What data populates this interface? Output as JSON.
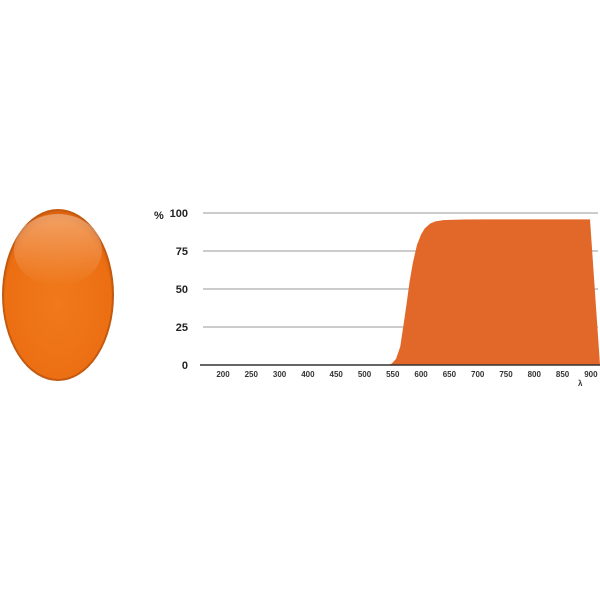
{
  "filter_swatch": {
    "color": "#ef7417",
    "shape": "ellipse"
  },
  "chart_data": {
    "type": "area",
    "title": "",
    "xlabel": "λ",
    "ylabel": "%",
    "xlim": [
      200,
      900
    ],
    "ylim": [
      0,
      100
    ],
    "grid": true,
    "x_ticks": [
      "200",
      "250",
      "300",
      "400",
      "450",
      "500",
      "550",
      "600",
      "650",
      "700",
      "750",
      "800",
      "850",
      "900"
    ],
    "y_ticks": [
      "0",
      "25",
      "50",
      "75",
      "100"
    ],
    "fill_color": "#e2682a",
    "series": [
      {
        "x": [
          200,
          515,
          522,
          530,
          538,
          545,
          550,
          556,
          562,
          570,
          578,
          585,
          595,
          605,
          620,
          640,
          660,
          700,
          800,
          900
        ],
        "y": [
          0,
          0,
          1,
          4,
          12,
          28,
          40,
          55,
          67,
          79,
          86,
          90,
          93,
          94.5,
          95.3,
          95.6,
          95.7,
          95.8,
          95.8,
          95.8
        ]
      }
    ]
  }
}
